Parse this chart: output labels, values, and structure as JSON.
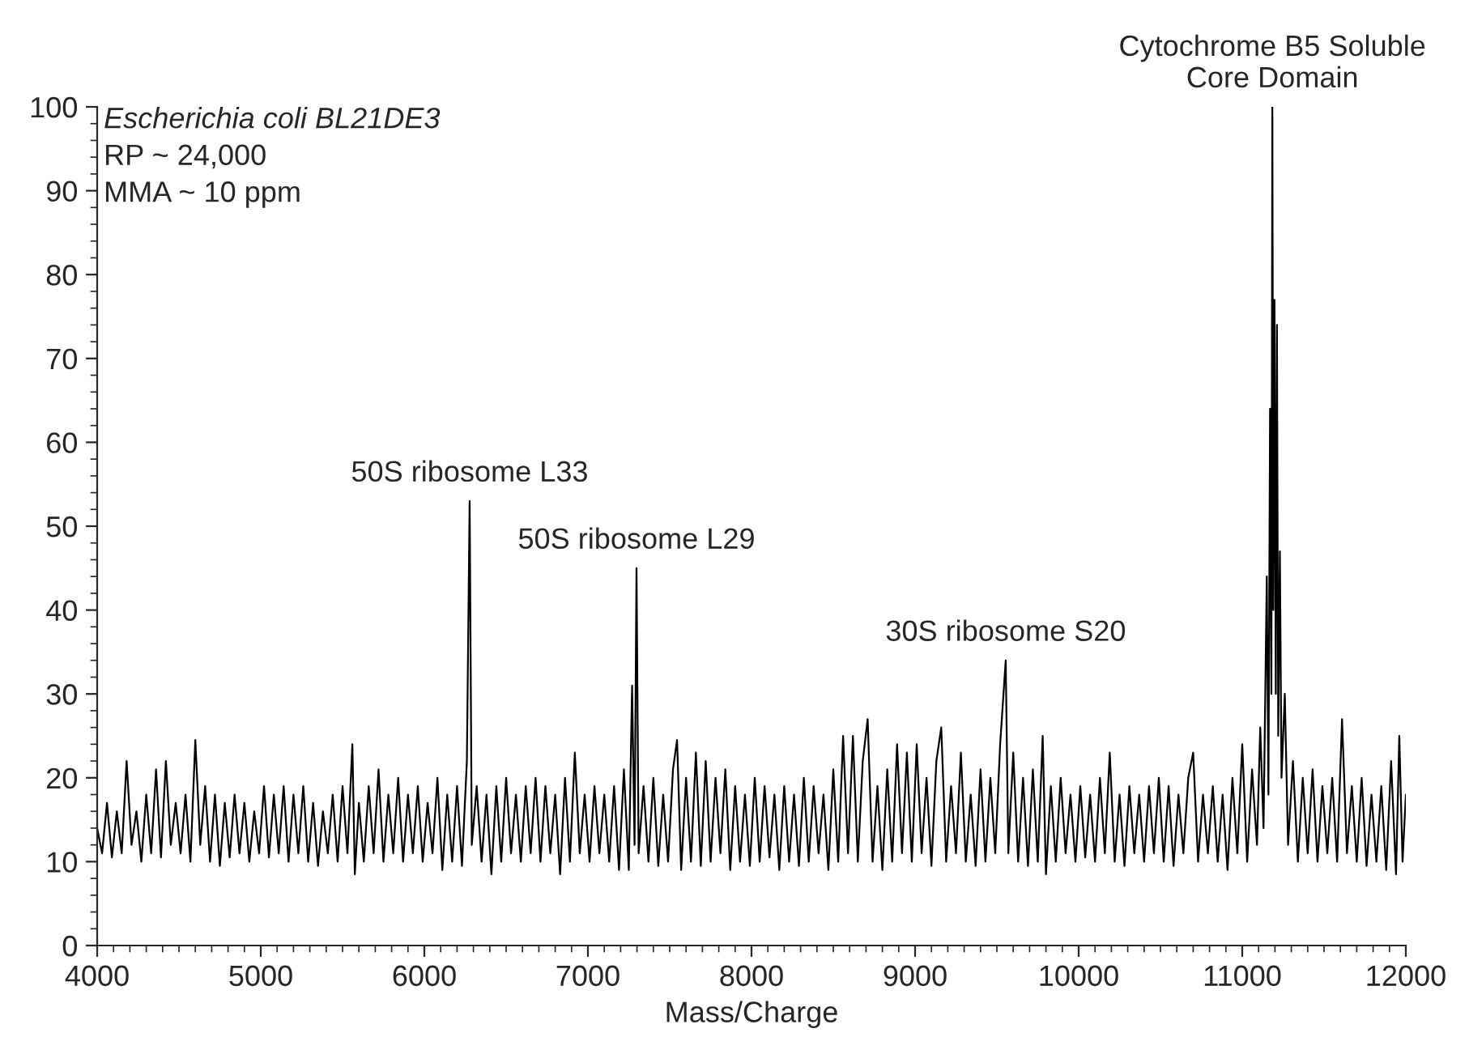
{
  "chart_data": {
    "type": "line",
    "xlabel": "Mass/Charge",
    "color": "#000000",
    "xlim": [
      4000,
      12000
    ],
    "xticks": [
      4000,
      5000,
      6000,
      7000,
      8000,
      9000,
      10000,
      11000,
      12000
    ],
    "ylim": [
      0,
      100
    ],
    "yticks": [
      0,
      10,
      20,
      30,
      40,
      50,
      60,
      70,
      80,
      90,
      100
    ],
    "grid": false,
    "legend": false,
    "marker": "none",
    "line_style": "solid",
    "annotations": [
      "Escherichia coli BL21DE3",
      "RP ~ 24,000",
      "MMA ~ 10 ppm",
      {
        "text": "50S ribosome L33",
        "x": 6277,
        "y": 53
      },
      {
        "text": "50S ribosome L29",
        "x": 7297,
        "y": 45
      },
      {
        "text": "30S ribosome S20",
        "x": 9554,
        "y": 34
      },
      {
        "text": "Cytochrome B5 Soluble\nCore Domain",
        "x": 11184,
        "y": 100
      }
    ],
    "x": [
      4000,
      4030,
      4060,
      4090,
      4120,
      4150,
      4180,
      4210,
      4240,
      4270,
      4300,
      4330,
      4360,
      4390,
      4420,
      4450,
      4480,
      4510,
      4540,
      4570,
      4600,
      4630,
      4660,
      4690,
      4720,
      4750,
      4780,
      4810,
      4840,
      4870,
      4900,
      4930,
      4960,
      4990,
      5020,
      5050,
      5080,
      5110,
      5140,
      5170,
      5200,
      5230,
      5260,
      5290,
      5320,
      5350,
      5380,
      5410,
      5440,
      5470,
      5500,
      5530,
      5560,
      5575,
      5600,
      5630,
      5660,
      5690,
      5720,
      5750,
      5780,
      5810,
      5840,
      5870,
      5900,
      5930,
      5960,
      5990,
      6020,
      6050,
      6080,
      6110,
      6140,
      6170,
      6200,
      6230,
      6260,
      6277,
      6290,
      6320,
      6350,
      6380,
      6410,
      6440,
      6470,
      6500,
      6530,
      6560,
      6590,
      6620,
      6650,
      6680,
      6710,
      6740,
      6770,
      6800,
      6830,
      6860,
      6890,
      6920,
      6950,
      6980,
      7010,
      7040,
      7070,
      7100,
      7130,
      7160,
      7190,
      7220,
      7250,
      7270,
      7285,
      7297,
      7310,
      7340,
      7370,
      7400,
      7430,
      7460,
      7490,
      7520,
      7545,
      7570,
      7600,
      7630,
      7660,
      7690,
      7720,
      7750,
      7780,
      7810,
      7840,
      7870,
      7900,
      7930,
      7960,
      7990,
      8020,
      8050,
      8080,
      8110,
      8140,
      8170,
      8200,
      8230,
      8260,
      8290,
      8320,
      8350,
      8380,
      8410,
      8440,
      8470,
      8500,
      8530,
      8560,
      8590,
      8620,
      8650,
      8680,
      8710,
      8740,
      8770,
      8800,
      8830,
      8860,
      8890,
      8920,
      8950,
      8980,
      9010,
      9040,
      9070,
      9100,
      9130,
      9160,
      9190,
      9220,
      9250,
      9280,
      9310,
      9340,
      9370,
      9400,
      9430,
      9460,
      9490,
      9520,
      9554,
      9570,
      9600,
      9630,
      9660,
      9690,
      9720,
      9750,
      9780,
      9800,
      9830,
      9860,
      9890,
      9920,
      9950,
      9980,
      10010,
      10040,
      10070,
      10100,
      10130,
      10160,
      10190,
      10220,
      10250,
      10280,
      10310,
      10340,
      10370,
      10400,
      10430,
      10460,
      10490,
      10520,
      10550,
      10580,
      10610,
      10640,
      10670,
      10700,
      10730,
      10760,
      10790,
      10820,
      10850,
      10880,
      10910,
      10940,
      10970,
      11000,
      11030,
      11060,
      11090,
      11110,
      11130,
      11150,
      11160,
      11170,
      11178,
      11184,
      11190,
      11197,
      11205,
      11212,
      11220,
      11230,
      11240,
      11260,
      11280,
      11310,
      11340,
      11370,
      11400,
      11430,
      11460,
      11490,
      11520,
      11550,
      11580,
      11610,
      11640,
      11670,
      11700,
      11730,
      11760,
      11790,
      11820,
      11850,
      11880,
      11910,
      11940,
      11960,
      11980,
      12000
    ],
    "values": [
      14,
      11,
      17,
      10.5,
      16,
      11,
      22,
      12,
      16,
      10,
      18,
      11,
      21,
      10.5,
      22,
      12,
      17,
      11,
      18,
      10,
      24.5,
      12,
      19,
      10,
      18,
      9.5,
      17,
      10.5,
      18,
      11,
      17,
      10,
      16,
      11,
      19,
      10.5,
      18,
      11,
      19,
      10,
      18,
      11,
      19,
      10,
      17,
      9.5,
      16,
      11,
      18,
      10,
      19,
      11,
      24,
      8.5,
      17,
      10,
      19,
      11,
      21,
      10,
      18,
      11,
      20,
      10,
      18,
      11,
      19,
      10,
      17,
      11,
      20,
      9,
      18,
      10,
      19,
      9.5,
      22,
      53,
      12,
      19,
      10,
      18,
      8.5,
      19,
      10,
      20,
      11,
      18,
      10,
      19,
      11,
      20,
      10,
      19,
      11,
      18,
      8.5,
      20,
      10,
      23,
      11,
      18,
      10,
      19,
      11,
      18,
      10,
      19,
      9,
      21,
      9,
      31,
      12,
      45,
      11,
      19,
      10,
      20,
      9.5,
      18,
      10,
      21,
      24.5,
      9,
      20,
      10,
      23,
      9.5,
      22,
      10,
      20,
      11,
      21,
      9,
      19,
      10,
      18,
      9.5,
      20,
      10,
      19,
      10.5,
      18,
      9,
      19,
      10,
      18,
      9.5,
      20,
      10,
      19,
      11,
      18,
      9,
      21,
      10,
      25,
      11,
      25,
      10,
      22,
      27,
      10,
      19,
      9,
      21,
      10,
      24,
      11,
      23,
      10,
      24,
      11,
      20,
      9.5,
      22,
      26,
      10,
      19,
      11,
      23,
      10,
      18,
      9.5,
      21,
      10,
      20,
      11,
      24,
      34,
      11,
      23,
      10,
      20,
      9.5,
      21,
      10,
      25,
      8.5,
      19,
      10,
      20,
      11,
      18,
      10,
      19,
      10.5,
      18,
      10,
      20,
      11,
      23,
      10,
      18,
      9.5,
      19,
      11,
      18,
      10,
      19,
      11,
      20,
      10,
      19,
      9.5,
      18,
      11,
      20,
      23,
      10,
      18,
      11,
      19,
      10,
      18,
      9,
      20,
      11,
      24,
      10,
      21,
      12,
      26,
      14,
      44,
      18,
      64,
      30,
      100,
      40,
      77,
      30,
      74,
      25,
      47,
      20,
      30,
      12,
      22,
      10,
      20,
      11,
      21,
      10,
      19,
      11,
      20,
      10,
      27,
      11,
      19,
      10,
      20,
      9.5,
      18,
      10,
      19,
      9,
      22,
      8.5,
      25,
      10,
      18
    ]
  }
}
